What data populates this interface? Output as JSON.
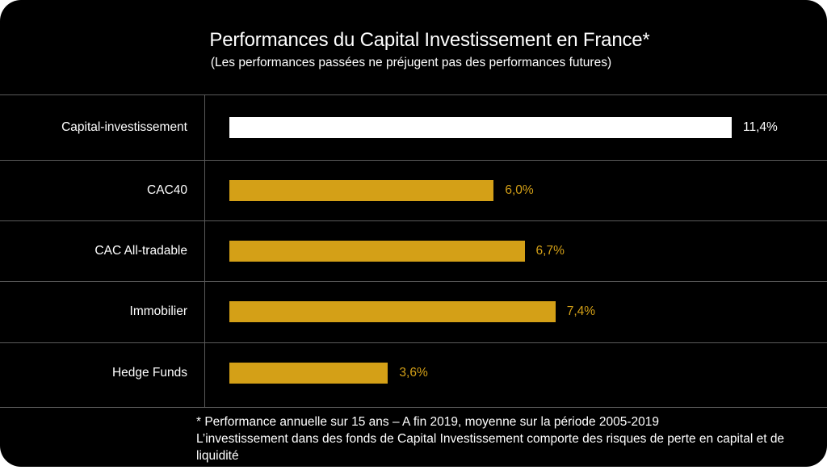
{
  "chart_data": {
    "type": "bar",
    "orientation": "horizontal",
    "title": "Performances du Capital Investissement en France*",
    "subtitle": "(Les performances passées ne préjugent pas des performances futures)",
    "categories": [
      "Capital-investissement",
      "CAC40",
      "CAC All-tradable",
      "Immobilier",
      "Hedge Funds"
    ],
    "values": [
      11.4,
      6.0,
      6.7,
      7.4,
      3.6
    ],
    "value_labels": [
      "11,4%",
      "6,0%",
      "6,7%",
      "7,4%",
      "3,6%"
    ],
    "unit": "%",
    "xlim": [
      0,
      11.4
    ],
    "grid": false,
    "colors": {
      "highlight_bar": "#ffffff",
      "bar": "#d4a017",
      "highlight_label": "#ffffff",
      "label": "#d4a017",
      "background": "#000000",
      "divider": "#5a5a5a"
    }
  },
  "footnote": {
    "line1": "* Performance annuelle sur 15 ans – A fin 2019, moyenne sur la période 2005-2019",
    "line2": "L’investissement dans des fonds de Capital Investissement comporte des risques de perte en capital et de",
    "line3": "liquidité"
  }
}
